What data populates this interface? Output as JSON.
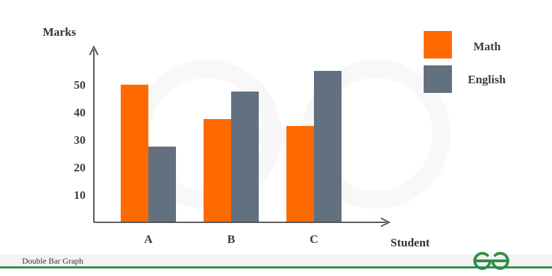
{
  "footer": {
    "caption": "Double Bar Graph"
  },
  "colors": {
    "math": "#ff6a00",
    "english": "#627080",
    "axis": "#555555",
    "brand": "#2f8d46"
  },
  "icons": {
    "watermark": "geeksforgeeks-watermark-icon",
    "logo": "geeksforgeeks-logo-icon"
  },
  "chart_data": {
    "type": "bar",
    "title": "",
    "xlabel": "Student",
    "ylabel": "Marks",
    "categories": [
      "A",
      "B",
      "C"
    ],
    "series": [
      {
        "name": "Math",
        "values": [
          50,
          37.5,
          35
        ],
        "color": "#ff6a00"
      },
      {
        "name": "English",
        "values": [
          27.5,
          47.5,
          55
        ],
        "color": "#627080"
      }
    ],
    "yticks": [
      10,
      20,
      30,
      40,
      50
    ],
    "ylim": [
      0,
      65
    ],
    "grid": false,
    "legend": "top-right"
  }
}
